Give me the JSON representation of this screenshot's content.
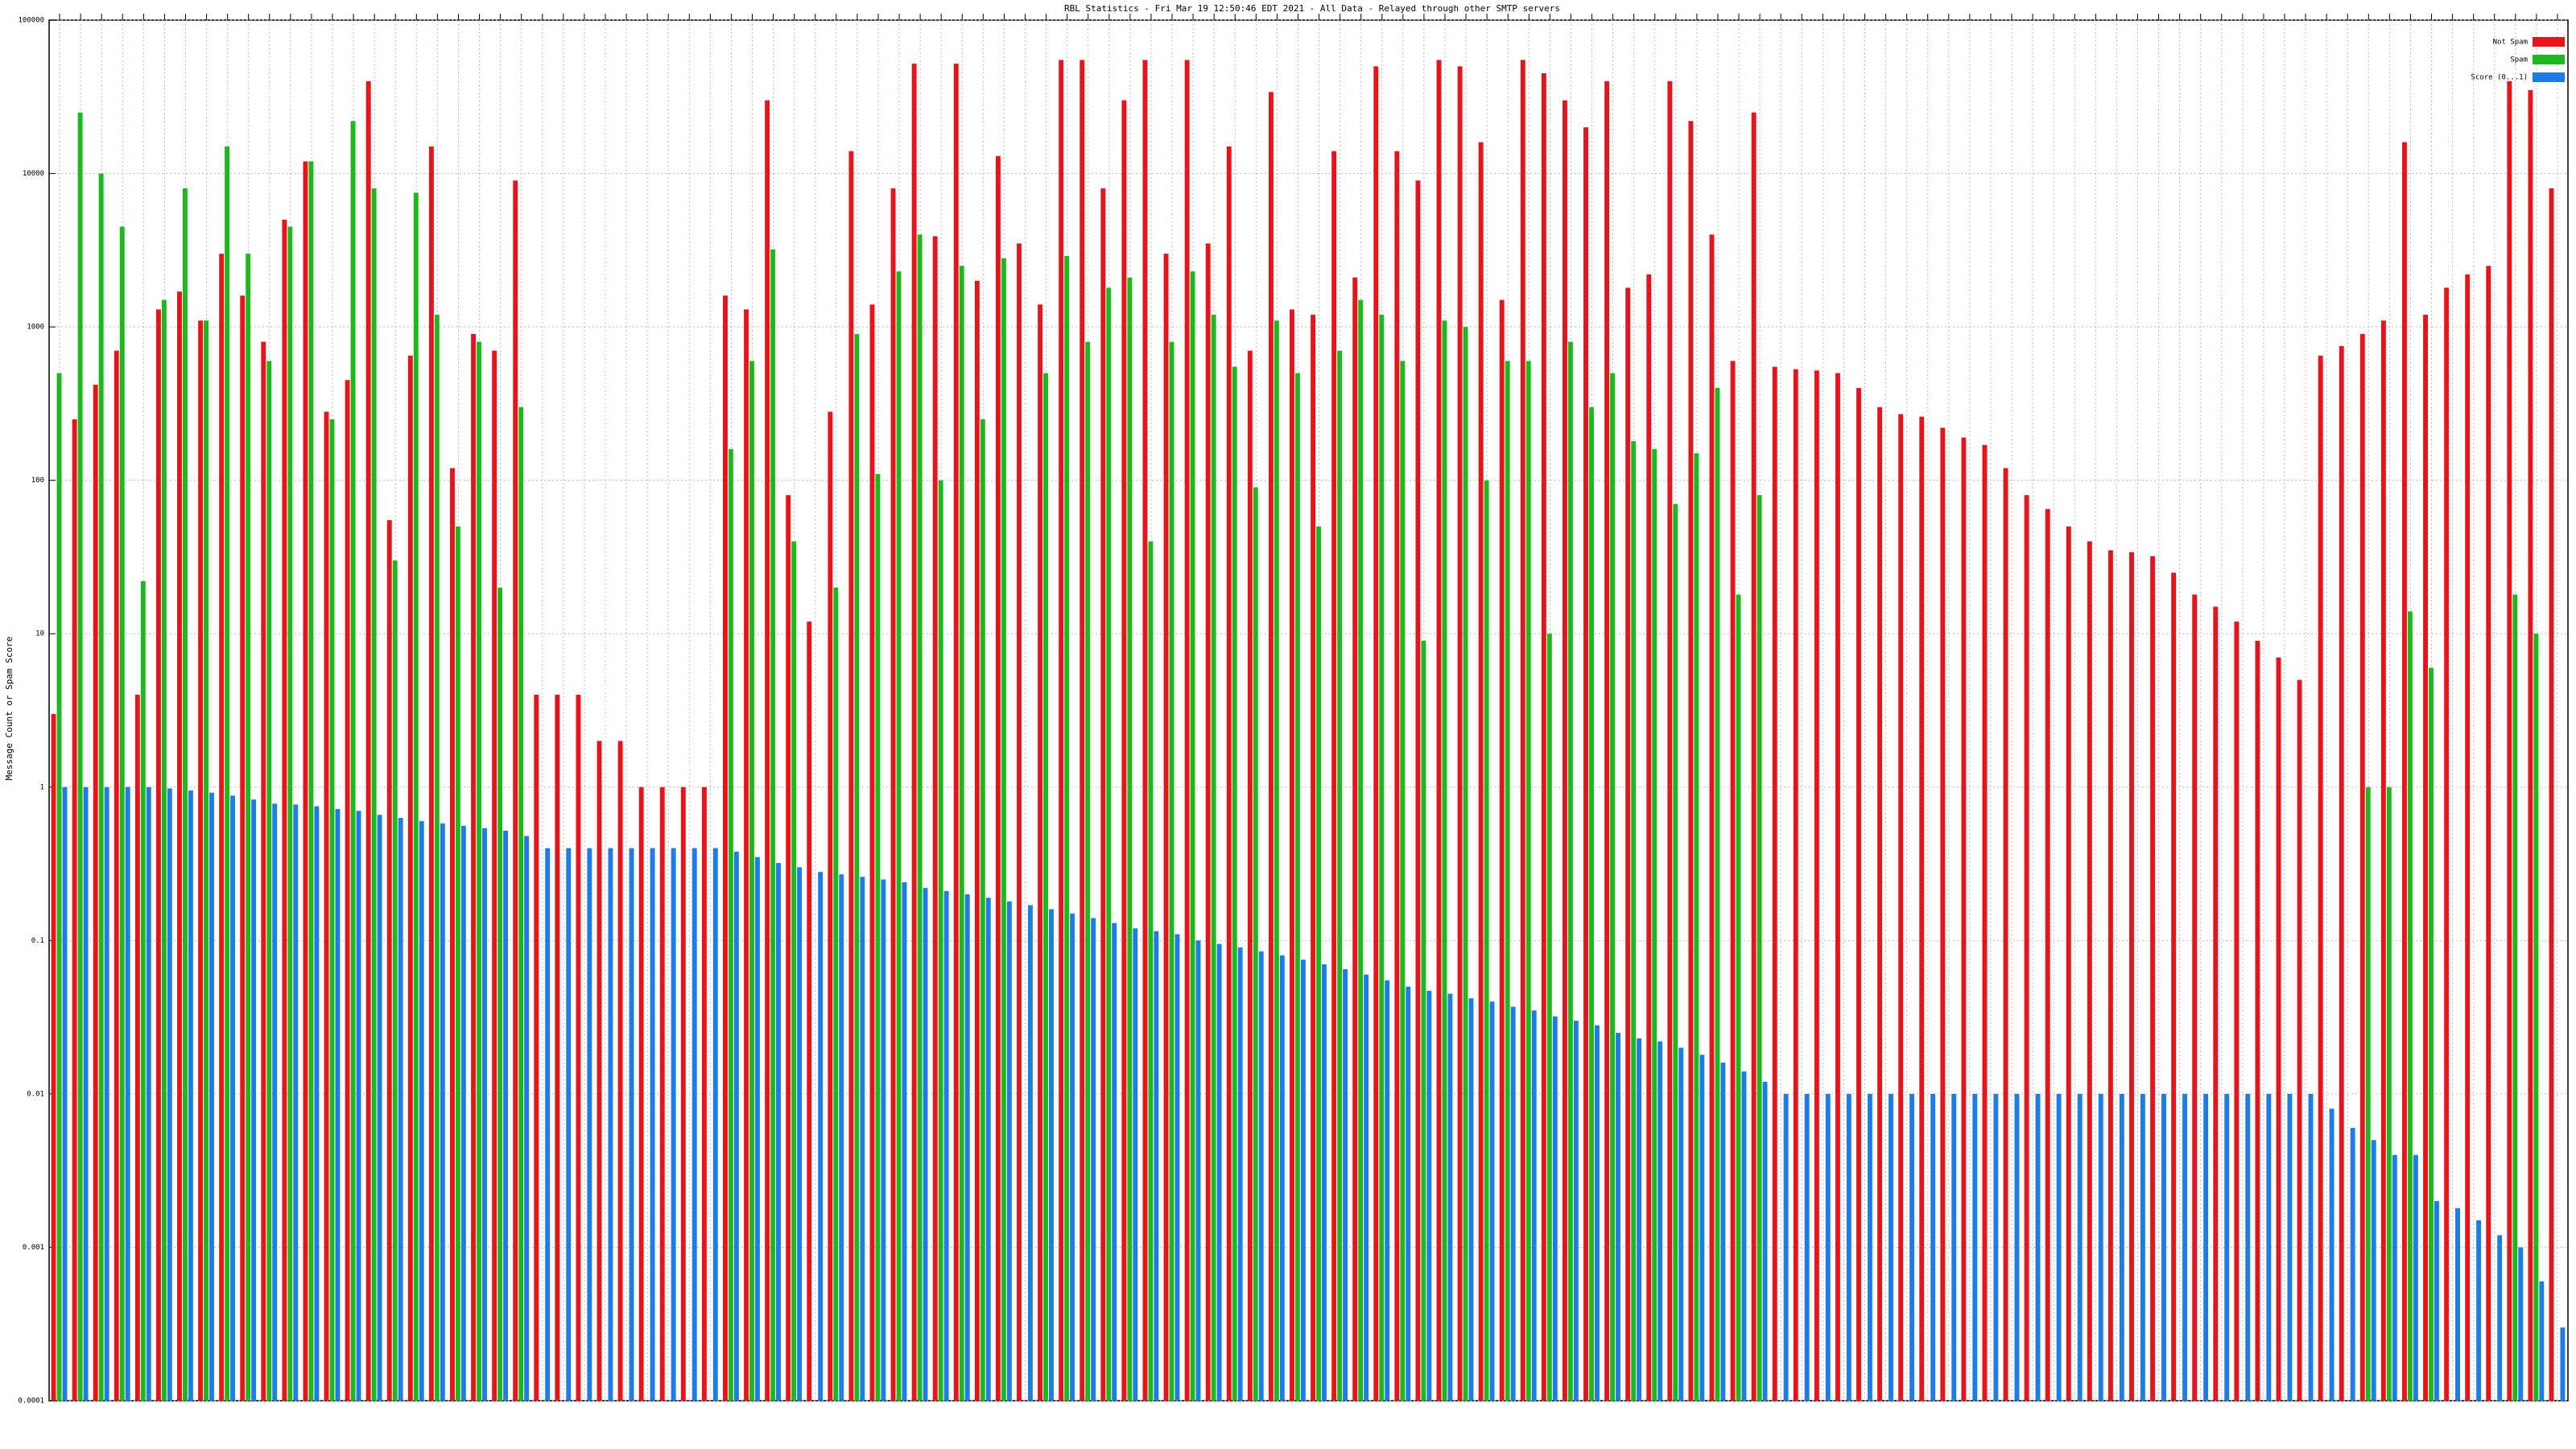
{
  "chart_data": {
    "type": "bar",
    "title": "RBL Statistics - Fri Mar 19 12:50:46 EDT 2021 - All Data - Relayed through other SMTP servers",
    "y_label": "Message Count or Spam Score",
    "log_y": true,
    "grid": true,
    "legend": "top-right",
    "categories": [
      null,
      null,
      null,
      null,
      null,
      null,
      null,
      null,
      null,
      null,
      null,
      null,
      null,
      null,
      null,
      null,
      null,
      null,
      null,
      null,
      null,
      null,
      null,
      null,
      null,
      null,
      null,
      null,
      null,
      null,
      null,
      null,
      null,
      null,
      null,
      null,
      null,
      null,
      null,
      null,
      null,
      null,
      null,
      null,
      null,
      null,
      null,
      null,
      null,
      null,
      null,
      null,
      null,
      null,
      null,
      null,
      null,
      null,
      null,
      null,
      null,
      null,
      null,
      null,
      null,
      null,
      null,
      null,
      null,
      null,
      null,
      null,
      null,
      null,
      null,
      null,
      null,
      null,
      null,
      null,
      null,
      null,
      null,
      null,
      null,
      null,
      null,
      null,
      null,
      null,
      null,
      null,
      null,
      null,
      null,
      null,
      null,
      null,
      null,
      null,
      null,
      null,
      null,
      null,
      null,
      null,
      null,
      null,
      null,
      null,
      null,
      null,
      null,
      null,
      null,
      null,
      null,
      null,
      null,
      null
    ],
    "ylim": [
      0.0001,
      100000
    ],
    "yticks": [
      0.0001,
      0.001,
      0.01,
      0.1,
      1,
      10,
      100,
      1000,
      10000,
      100000
    ],
    "series": [
      {
        "name": "Not Spam",
        "color": "#e8141c",
        "values": [
          3,
          250,
          420,
          700,
          4,
          1300,
          1700,
          1100,
          3000,
          1600,
          800,
          5000,
          12000,
          280,
          450,
          40000,
          55,
          650,
          15000,
          120,
          900,
          700,
          9000,
          4,
          4,
          4,
          2,
          2,
          1,
          1,
          1,
          1,
          1600,
          1300,
          30000,
          80,
          12,
          280,
          14000,
          1400,
          8000,
          52000,
          3900,
          52000,
          2000,
          13000,
          3500,
          1400,
          55000,
          55000,
          8000,
          30000,
          55000,
          3000,
          55000,
          3500,
          15000,
          700,
          34000,
          1300,
          1200,
          14000,
          2100,
          50000,
          14000,
          9000,
          55000,
          50000,
          16000,
          1500,
          55000,
          45000,
          30000,
          20000,
          40000,
          1800,
          2200,
          40000,
          22000,
          4000,
          600,
          25000,
          550,
          530,
          520,
          500,
          400,
          300,
          270,
          260,
          220,
          190,
          170,
          120,
          80,
          65,
          50,
          40,
          35,
          34,
          32,
          25,
          18,
          15,
          12,
          9,
          7,
          5,
          650,
          750,
          900,
          1100,
          16000,
          1200,
          1800,
          2200,
          2500,
          40000,
          35000,
          8000
        ]
      },
      {
        "name": "Spam",
        "color": "#1db81d",
        "values": [
          500,
          25000,
          10000,
          4500,
          22,
          1500,
          8000,
          1100,
          15000,
          3000,
          600,
          4500,
          12000,
          250,
          22000,
          8000,
          30,
          7500,
          1200,
          50,
          800,
          20,
          300,
          null,
          null,
          null,
          null,
          null,
          null,
          null,
          null,
          null,
          160,
          600,
          3200,
          40,
          null,
          20,
          900,
          110,
          2300,
          4000,
          100,
          2500,
          250,
          2800,
          null,
          500,
          2900,
          800,
          1800,
          2100,
          40,
          800,
          2300,
          1200,
          550,
          90,
          1100,
          500,
          50,
          700,
          1500,
          1200,
          600,
          9,
          1100,
          1000,
          100,
          600,
          600,
          10,
          800,
          300,
          500,
          180,
          160,
          70,
          150,
          400,
          18,
          80,
          null,
          null,
          null,
          null,
          null,
          null,
          null,
          null,
          null,
          null,
          null,
          null,
          null,
          null,
          null,
          null,
          null,
          null,
          null,
          null,
          null,
          null,
          null,
          null,
          null,
          null,
          null,
          null,
          1,
          1,
          14,
          6,
          null,
          null,
          null,
          18,
          10,
          null
        ]
      },
      {
        "name": "Score (0...1)",
        "color": "#1e7ce8",
        "values": [
          1,
          1,
          1,
          1,
          1,
          0.98,
          0.95,
          0.92,
          0.88,
          0.83,
          0.78,
          0.77,
          0.75,
          0.72,
          0.7,
          0.66,
          0.63,
          0.6,
          0.58,
          0.56,
          0.54,
          0.52,
          0.48,
          0.4,
          0.4,
          0.4,
          0.4,
          0.4,
          0.4,
          0.4,
          0.4,
          0.4,
          0.38,
          0.35,
          0.32,
          0.3,
          0.28,
          0.27,
          0.26,
          0.25,
          0.24,
          0.22,
          0.21,
          0.2,
          0.19,
          0.18,
          0.17,
          0.16,
          0.15,
          0.14,
          0.13,
          0.12,
          0.115,
          0.11,
          0.1,
          0.095,
          0.09,
          0.085,
          0.08,
          0.075,
          0.07,
          0.065,
          0.06,
          0.055,
          0.05,
          0.047,
          0.045,
          0.042,
          0.04,
          0.037,
          0.035,
          0.032,
          0.03,
          0.028,
          0.025,
          0.023,
          0.022,
          0.02,
          0.018,
          0.016,
          0.014,
          0.012,
          0.01,
          0.01,
          0.01,
          0.01,
          0.01,
          0.01,
          0.01,
          0.01,
          0.01,
          0.01,
          0.01,
          0.01,
          0.01,
          0.01,
          0.01,
          0.01,
          0.01,
          0.01,
          0.01,
          0.01,
          0.01,
          0.01,
          0.01,
          0.01,
          0.01,
          0.01,
          0.008,
          0.006,
          0.005,
          0.004,
          0.004,
          0.002,
          0.0018,
          0.0015,
          0.0012,
          0.001,
          0.0006,
          0.0003
        ]
      }
    ]
  }
}
